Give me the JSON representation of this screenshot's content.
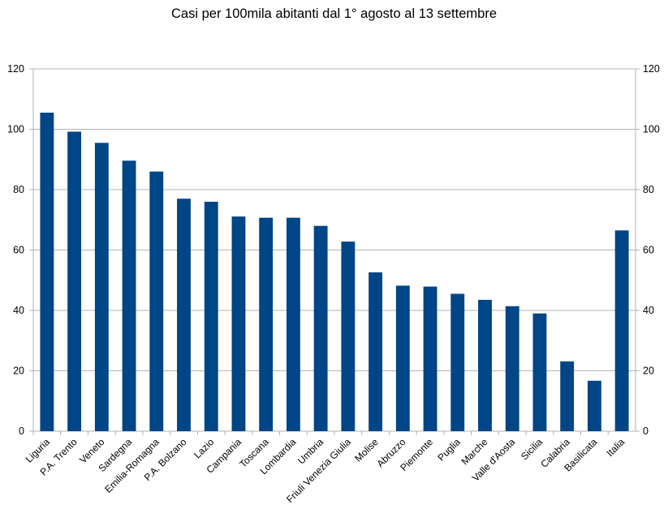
{
  "chart_data": {
    "type": "bar",
    "title": "Casi per 100mila abitanti dal 1° agosto al 13 settembre",
    "xlabel": "",
    "ylabel": "",
    "ylim": [
      0,
      120
    ],
    "yticks": [
      0,
      20,
      40,
      60,
      80,
      100,
      120
    ],
    "grid": true,
    "legend": "none",
    "bar_color": "#004586",
    "categories": [
      "Liguria",
      "P.A. Trento",
      "Veneto",
      "Sardegna",
      "Emilia-Romagna",
      "P.A. Bolzano",
      "Lazio",
      "Campania",
      "Toscana",
      "Lombardia",
      "Umbria",
      "Friuli Venezia Giulia",
      "Molise",
      "Abruzzo",
      "Piemonte",
      "Puglia",
      "Marche",
      "Valle d'Aosta",
      "Sicilia",
      "Calabria",
      "Basilicata",
      "Italia"
    ],
    "values": [
      105.5,
      99.2,
      95.5,
      89.6,
      86.0,
      77.0,
      76.0,
      71.1,
      70.7,
      70.7,
      68.0,
      62.8,
      52.6,
      48.2,
      47.9,
      45.5,
      43.5,
      41.4,
      39.0,
      23.1,
      16.7,
      66.5
    ]
  }
}
